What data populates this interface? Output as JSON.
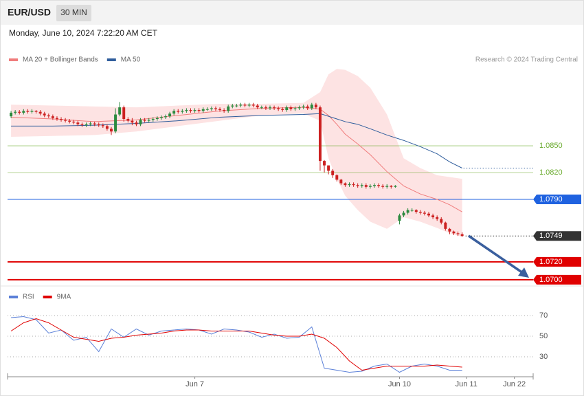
{
  "header": {
    "symbol": "EUR/USD",
    "interval": "30 MIN",
    "datetime": "Monday, June 10, 2024 7:22:20 AM CET"
  },
  "chart_data": [
    {
      "type": "candlestick",
      "credit": "Research © 2024 Trading Central",
      "xlim": [
        -1,
        125
      ],
      "ylim": [
        1.0693,
        1.0967
      ],
      "up_color": "#2b8a3e",
      "down_color": "#cc2020",
      "open": [
        1.0883,
        1.0887,
        1.0888,
        1.0887,
        1.0889,
        1.0888,
        1.0889,
        1.0888,
        1.0886,
        1.0884,
        1.0883,
        1.0881,
        1.088,
        1.0879,
        1.0878,
        1.0877,
        1.0876,
        1.0874,
        1.0873,
        1.0874,
        1.0875,
        1.0874,
        1.0873,
        1.0872,
        1.0869,
        1.0866,
        1.0885,
        1.0893,
        1.088,
        1.0878,
        1.0876,
        1.0874,
        1.0879,
        1.0878,
        1.0879,
        1.088,
        1.0881,
        1.0882,
        1.0883,
        1.0886,
        1.0889,
        1.0888,
        1.0889,
        1.089,
        1.0889,
        1.089,
        1.0889,
        1.0891,
        1.0891,
        1.0892,
        1.0891,
        1.089,
        1.0889,
        1.0894,
        1.0895,
        1.0895,
        1.0896,
        1.0895,
        1.0896,
        1.0895,
        1.0893,
        1.0893,
        1.0892,
        1.0893,
        1.0892,
        1.0891,
        1.089,
        1.0893,
        1.0891,
        1.0892,
        1.0893,
        1.0894,
        1.0892,
        1.0896,
        1.0893,
        1.0833,
        1.0828,
        1.0822,
        1.0817,
        1.0812,
        1.0808,
        1.0806,
        1.0807,
        1.0806,
        1.0805,
        1.0806,
        1.0804,
        1.0805,
        1.0806,
        1.0805,
        1.0804,
        1.0805,
        1.0804,
        1.0766,
        1.0772,
        1.0775,
        1.0778,
        1.0778,
        1.0776,
        1.0775,
        1.0774,
        1.0772,
        1.077,
        1.0768,
        1.0764,
        1.0757,
        1.0754,
        1.0752,
        1.0751
      ],
      "high": [
        1.0889,
        1.089,
        1.089,
        1.0891,
        1.0891,
        1.0891,
        1.089,
        1.089,
        1.0888,
        1.0886,
        1.0885,
        1.0883,
        1.0882,
        1.0881,
        1.088,
        1.0879,
        1.0878,
        1.0876,
        1.0876,
        1.0877,
        1.0877,
        1.0876,
        1.0875,
        1.0874,
        1.0871,
        1.0892,
        1.0899,
        1.0895,
        1.0882,
        1.0881,
        1.0878,
        1.0881,
        1.0881,
        1.0881,
        1.0882,
        1.0883,
        1.0884,
        1.0885,
        1.0888,
        1.0891,
        1.0891,
        1.0891,
        1.0892,
        1.0892,
        1.0892,
        1.0892,
        1.0893,
        1.0893,
        1.0894,
        1.0894,
        1.0893,
        1.0892,
        1.0896,
        1.0897,
        1.0897,
        1.0898,
        1.0898,
        1.0898,
        1.0898,
        1.0897,
        1.0895,
        1.0895,
        1.0895,
        1.0895,
        1.0894,
        1.0893,
        1.0895,
        1.0895,
        1.0894,
        1.0895,
        1.0896,
        1.0896,
        1.0898,
        1.0898,
        1.0895,
        1.0834,
        1.0828,
        1.0824,
        1.0818,
        1.0813,
        1.0809,
        1.0809,
        1.0809,
        1.0808,
        1.0808,
        1.0808,
        1.0807,
        1.0808,
        1.0808,
        1.0807,
        1.0807,
        1.0806,
        1.0806,
        1.0774,
        1.0777,
        1.078,
        1.078,
        1.0779,
        1.0778,
        1.0777,
        1.0776,
        1.0774,
        1.0772,
        1.077,
        1.0765,
        1.0758,
        1.0755,
        1.0754,
        1.0753
      ],
      "low": [
        1.0881,
        1.0885,
        1.0885,
        1.0885,
        1.0886,
        1.0886,
        1.0886,
        1.0884,
        1.0882,
        1.0881,
        1.0879,
        1.0878,
        1.0877,
        1.0876,
        1.0875,
        1.0874,
        1.0872,
        1.0871,
        1.0871,
        1.0872,
        1.0872,
        1.0871,
        1.087,
        1.0867,
        1.0862,
        1.0864,
        1.0883,
        1.0877,
        1.0876,
        1.0873,
        1.0872,
        1.0872,
        1.0876,
        1.0876,
        1.0877,
        1.0878,
        1.0879,
        1.088,
        1.0881,
        1.0884,
        1.0886,
        1.0886,
        1.0887,
        1.0887,
        1.0887,
        1.0887,
        1.0887,
        1.0889,
        1.0889,
        1.0889,
        1.0888,
        1.0887,
        1.0887,
        1.0892,
        1.0893,
        1.0893,
        1.0893,
        1.0893,
        1.0893,
        1.0891,
        1.0891,
        1.089,
        1.089,
        1.089,
        1.0889,
        1.0888,
        1.0888,
        1.0889,
        1.0889,
        1.089,
        1.0891,
        1.089,
        1.089,
        1.0891,
        1.0822,
        1.082,
        1.0818,
        1.0814,
        1.081,
        1.0806,
        1.0804,
        1.0804,
        1.0804,
        1.0803,
        1.0803,
        1.0802,
        1.0802,
        1.0803,
        1.0803,
        1.0802,
        1.0802,
        1.0802,
        1.0803,
        1.0762,
        1.077,
        1.0773,
        1.0776,
        1.0774,
        1.0773,
        1.0772,
        1.077,
        1.0768,
        1.0766,
        1.0762,
        1.0755,
        1.0751,
        1.075,
        1.0749,
        1.0748
      ],
      "close": [
        1.0887,
        1.0888,
        1.0887,
        1.0889,
        1.0888,
        1.0889,
        1.0888,
        1.0886,
        1.0884,
        1.0883,
        1.0881,
        1.088,
        1.0879,
        1.0878,
        1.0877,
        1.0876,
        1.0874,
        1.0873,
        1.0874,
        1.0875,
        1.0874,
        1.0873,
        1.0872,
        1.0869,
        1.0866,
        1.0885,
        1.0893,
        1.088,
        1.0878,
        1.0876,
        1.0874,
        1.0879,
        1.0878,
        1.0879,
        1.088,
        1.0881,
        1.0882,
        1.0883,
        1.0886,
        1.0889,
        1.0888,
        1.0889,
        1.089,
        1.0889,
        1.089,
        1.0889,
        1.0891,
        1.0891,
        1.0892,
        1.0891,
        1.089,
        1.0889,
        1.0894,
        1.0895,
        1.0895,
        1.0896,
        1.0895,
        1.0896,
        1.0895,
        1.0893,
        1.0893,
        1.0892,
        1.0893,
        1.0892,
        1.0891,
        1.089,
        1.0893,
        1.0891,
        1.0892,
        1.0893,
        1.0894,
        1.0892,
        1.0896,
        1.0893,
        1.0833,
        1.0828,
        1.0822,
        1.0817,
        1.0812,
        1.0808,
        1.0806,
        1.0807,
        1.0806,
        1.0805,
        1.0806,
        1.0804,
        1.0805,
        1.0806,
        1.0805,
        1.0804,
        1.0805,
        1.0804,
        1.0805,
        1.0772,
        1.0775,
        1.0778,
        1.0778,
        1.0776,
        1.0775,
        1.0774,
        1.0772,
        1.077,
        1.0768,
        1.0764,
        1.0757,
        1.0754,
        1.0752,
        1.0751,
        1.0749
      ],
      "series": [
        {
          "name": "MA 20 + Bollinger Bands",
          "color": "#f07c7c",
          "band_color": "#fde3e3",
          "x": [
            0,
            10,
            20,
            30,
            40,
            50,
            60,
            70,
            74,
            76,
            78,
            80,
            83,
            86,
            90,
            94,
            98,
            102,
            105,
            108
          ],
          "values": [
            1.0882,
            1.088,
            1.0877,
            1.0879,
            1.0884,
            1.0889,
            1.0892,
            1.0893,
            1.0891,
            1.0884,
            1.0874,
            1.0863,
            1.0852,
            1.084,
            1.0821,
            1.0805,
            1.0796,
            1.079,
            1.0784,
            1.0776
          ],
          "upper": [
            1.0896,
            1.0895,
            1.0894,
            1.0893,
            1.0895,
            1.0897,
            1.0897,
            1.0898,
            1.091,
            1.093,
            1.0936,
            1.0935,
            1.0928,
            1.0915,
            1.0885,
            1.0836,
            1.0825,
            1.0817,
            1.0815,
            1.0813
          ],
          "lower": [
            1.086,
            1.0861,
            1.0862,
            1.0866,
            1.0872,
            1.0878,
            1.0884,
            1.0886,
            1.0878,
            1.0836,
            1.0813,
            1.0794,
            1.0778,
            1.0765,
            1.0757,
            1.077,
            1.0765,
            1.0758,
            1.0752,
            1.0748
          ]
        },
        {
          "name": "MA 50",
          "color": "#2f5d9c",
          "x": [
            0,
            10,
            20,
            30,
            40,
            50,
            60,
            70,
            74,
            76,
            78,
            80,
            83,
            86,
            90,
            94,
            98,
            102,
            105,
            108
          ],
          "values": [
            1.0872,
            1.0872,
            1.0873,
            1.0875,
            1.0878,
            1.0882,
            1.0884,
            1.0885,
            1.0886,
            1.0883,
            1.088,
            1.0877,
            1.0874,
            1.0869,
            1.0862,
            1.0856,
            1.0849,
            1.0841,
            1.0832,
            1.0825
          ]
        }
      ],
      "levels": [
        {
          "value": 1.085,
          "label": "1.0850",
          "color": "#6aab2e",
          "style": "text",
          "width": 0.6
        },
        {
          "value": 1.082,
          "label": "1.0820",
          "color": "#6aab2e",
          "style": "text",
          "width": 0.6
        },
        {
          "value": 1.079,
          "label": "1.0790",
          "color": "#1f62e0",
          "style": "box",
          "width": 1
        },
        {
          "value": 1.0749,
          "label": "1.0749",
          "color": "#333333",
          "style": "last",
          "width": 1
        },
        {
          "value": 1.072,
          "label": "1.0720",
          "color": "#e00000",
          "style": "box",
          "width": 2
        },
        {
          "value": 1.07,
          "label": "1.0700",
          "color": "#e00000",
          "style": "box",
          "width": 2
        }
      ]
    },
    {
      "type": "line",
      "xlim": [
        -1,
        125
      ],
      "ylim": [
        12,
        96
      ],
      "yticks": [
        30,
        50,
        70
      ],
      "grid": true,
      "xticks": [
        {
          "value": 44,
          "label": "Jun 7"
        },
        {
          "value": 93,
          "label": "Jun 10"
        },
        {
          "value": 109,
          "label": "Jun 11"
        },
        {
          "value": 120.5,
          "label": "Jun 22"
        }
      ],
      "x": [
        0,
        3,
        6,
        9,
        12,
        15,
        18,
        21,
        24,
        27,
        30,
        33,
        36,
        39,
        42,
        45,
        48,
        51,
        54,
        57,
        60,
        63,
        66,
        69,
        72,
        75,
        78,
        81,
        84,
        87,
        90,
        93,
        96,
        99,
        102,
        105,
        108
      ],
      "series": [
        {
          "name": "RSI",
          "color": "#5b80d8",
          "values": [
            68,
            69,
            66,
            53,
            56,
            46,
            49,
            35,
            57,
            49,
            57,
            51,
            55,
            56,
            57,
            56,
            52,
            57,
            56,
            54,
            49,
            52,
            48,
            49,
            59,
            19,
            17,
            15,
            16,
            21,
            23,
            15,
            21,
            23,
            21,
            17,
            17
          ]
        },
        {
          "name": "9MA",
          "color": "#e00000",
          "values": [
            55,
            63,
            67,
            63,
            56,
            49,
            47,
            45,
            48,
            49,
            51,
            52,
            53,
            55,
            56,
            56,
            55,
            55,
            55,
            55,
            53,
            51,
            50,
            50,
            52,
            48,
            39,
            26,
            17,
            19,
            21,
            21,
            21,
            21,
            22,
            21,
            20
          ]
        }
      ]
    }
  ]
}
